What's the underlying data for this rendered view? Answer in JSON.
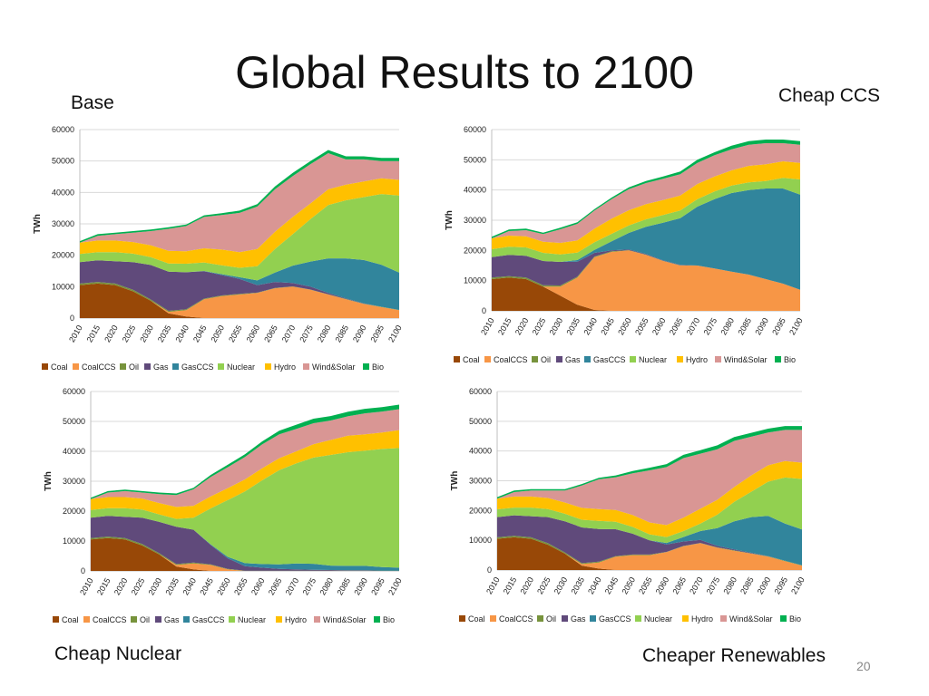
{
  "slide": {
    "title": "Global Results to 2100",
    "labels": {
      "base": "Base",
      "cheap_ccs": "Cheap CCS",
      "cheap_nuclear": "Cheap Nuclear",
      "cheaper_renewables": "Cheaper Renewables"
    },
    "page_number": "20"
  },
  "colors": {
    "Coal": "#984807",
    "CoalCCS": "#F79646",
    "Oil": "#77933C",
    "Gas": "#604A7B",
    "GasCCS": "#31859C",
    "Nuclear": "#92D050",
    "Hydro": "#FFC000",
    "Wind&Solar": "#D99694",
    "Bio": "#00B050"
  },
  "chart_data": [
    {
      "id": "base",
      "type": "area",
      "stacked": true,
      "title": "Base",
      "ylabel": "TWh",
      "ylim": [
        0,
        60000
      ],
      "yticks": [
        0,
        10000,
        20000,
        30000,
        40000,
        50000,
        60000
      ],
      "x": [
        "2010",
        "2015",
        "2020",
        "2025",
        "2030",
        "2035",
        "2040",
        "2045",
        "2050",
        "2055",
        "2060",
        "2065",
        "2070",
        "2075",
        "2080",
        "2085",
        "2090",
        "2095",
        "2100"
      ],
      "legend": [
        "Coal",
        "CoalCCS",
        "Oil",
        "Gas",
        "GasCCS",
        "Nuclear",
        "Hydro",
        "Wind&Solar",
        "Bio"
      ],
      "series": [
        {
          "name": "Coal",
          "values": [
            10500,
            11000,
            10500,
            8500,
            5500,
            1500,
            500,
            0,
            0,
            0,
            0,
            0,
            0,
            0,
            0,
            0,
            0,
            0,
            0
          ]
        },
        {
          "name": "CoalCCS",
          "values": [
            0,
            0,
            0,
            0,
            0,
            500,
            2000,
            6000,
            7000,
            7500,
            8000,
            9500,
            10000,
            9000,
            7500,
            6000,
            4500,
            3500,
            2500
          ]
        },
        {
          "name": "Oil",
          "values": [
            500,
            500,
            500,
            500,
            400,
            300,
            300,
            200,
            200,
            200,
            100,
            100,
            100,
            100,
            100,
            100,
            100,
            100,
            100
          ]
        },
        {
          "name": "Gas",
          "values": [
            6800,
            6900,
            7100,
            8800,
            11000,
            12500,
            11800,
            8700,
            6500,
            4800,
            2400,
            1900,
            1100,
            900,
            400,
            200,
            100,
            0,
            0
          ]
        },
        {
          "name": "GasCCS",
          "values": [
            0,
            0,
            0,
            0,
            0,
            0,
            0,
            100,
            300,
            500,
            1500,
            3000,
            5500,
            8000,
            11000,
            12700,
            13800,
            13400,
            11900
          ]
        },
        {
          "name": "Nuclear",
          "values": [
            2600,
            2600,
            2900,
            2700,
            2500,
            2600,
            2700,
            2700,
            2800,
            3000,
            4500,
            7500,
            10000,
            13500,
            17000,
            18500,
            20000,
            22500,
            24500
          ]
        },
        {
          "name": "Hydro",
          "values": [
            3600,
            3700,
            3700,
            3700,
            3800,
            4000,
            4000,
            4500,
            5000,
            5000,
            5500,
            5500,
            5500,
            5000,
            5000,
            5000,
            5000,
            5000,
            5000
          ]
        },
        {
          "name": "Wind&Solar",
          "values": [
            0,
            1500,
            2000,
            3000,
            4500,
            7000,
            8000,
            10000,
            11000,
            12500,
            13500,
            13500,
            13000,
            12500,
            11500,
            8000,
            7000,
            5500,
            6000
          ]
        },
        {
          "name": "Bio",
          "values": [
            500,
            500,
            500,
            500,
            500,
            500,
            500,
            500,
            600,
            700,
            800,
            900,
            1000,
            1000,
            1000,
            1000,
            1000,
            1000,
            1000
          ]
        }
      ]
    },
    {
      "id": "cheap_ccs",
      "type": "area",
      "stacked": true,
      "title": "Cheap CCS",
      "ylabel": "TWh",
      "ylim": [
        0,
        60000
      ],
      "yticks": [
        0,
        10000,
        20000,
        30000,
        40000,
        50000,
        60000
      ],
      "x": [
        "2010",
        "2015",
        "2020",
        "2025",
        "2030",
        "2035",
        "2040",
        "2045",
        "2050",
        "2055",
        "2060",
        "2065",
        "2070",
        "2075",
        "2080",
        "2085",
        "2090",
        "2095",
        "2100"
      ],
      "legend": [
        "Coal",
        "CoalCCS",
        "Oil",
        "Gas",
        "GasCCS",
        "Nuclear",
        "Hydro",
        "Wind&Solar",
        "Bio"
      ],
      "series": [
        {
          "name": "Coal",
          "values": [
            10500,
            11000,
            10500,
            8000,
            5000,
            2000,
            300,
            0,
            0,
            0,
            0,
            0,
            0,
            0,
            0,
            0,
            0,
            0,
            0
          ]
        },
        {
          "name": "CoalCCS",
          "values": [
            0,
            0,
            0,
            0,
            3000,
            9000,
            17500,
            19500,
            20000,
            18500,
            16500,
            15000,
            15000,
            14000,
            13000,
            12000,
            10500,
            9000,
            7000
          ]
        },
        {
          "name": "Oil",
          "values": [
            500,
            500,
            500,
            500,
            400,
            300,
            200,
            200,
            100,
            100,
            100,
            100,
            0,
            0,
            0,
            0,
            0,
            0,
            0
          ]
        },
        {
          "name": "Gas",
          "values": [
            6800,
            7000,
            7200,
            8000,
            7800,
            5000,
            1200,
            300,
            200,
            200,
            100,
            100,
            0,
            0,
            0,
            0,
            0,
            0,
            0
          ]
        },
        {
          "name": "GasCCS",
          "values": [
            0,
            0,
            0,
            0,
            0,
            500,
            1000,
            3000,
            5500,
            9000,
            12500,
            15500,
            19500,
            23000,
            26000,
            28000,
            30000,
            31500,
            31500
          ]
        },
        {
          "name": "Nuclear",
          "values": [
            2600,
            2700,
            2800,
            2700,
            2500,
            2500,
            2500,
            2500,
            2500,
            2500,
            2500,
            2500,
            2500,
            2500,
            2500,
            2500,
            2500,
            3500,
            5000
          ]
        },
        {
          "name": "Hydro",
          "values": [
            3600,
            3700,
            3700,
            3700,
            3800,
            4000,
            4500,
            5000,
            5000,
            5000,
            5000,
            5000,
            5000,
            5000,
            5000,
            5500,
            5500,
            5500,
            5500
          ]
        },
        {
          "name": "Wind&Solar",
          "values": [
            0,
            1500,
            2000,
            2500,
            4500,
            5500,
            6000,
            6500,
            7000,
            7000,
            7000,
            7000,
            7000,
            7000,
            7000,
            7000,
            7000,
            6000,
            6000
          ]
        },
        {
          "name": "Bio",
          "values": [
            500,
            500,
            500,
            500,
            500,
            500,
            500,
            500,
            600,
            700,
            800,
            900,
            1000,
            1000,
            1200,
            1200,
            1200,
            1200,
            1200
          ]
        }
      ]
    },
    {
      "id": "cheap_nuclear",
      "type": "area",
      "stacked": true,
      "title": "Cheap Nuclear",
      "ylabel": "TWh",
      "ylim": [
        0,
        60000
      ],
      "yticks": [
        0,
        10000,
        20000,
        30000,
        40000,
        50000,
        60000
      ],
      "x": [
        "2010",
        "2015",
        "2020",
        "2025",
        "2030",
        "2035",
        "2040",
        "2045",
        "2050",
        "2055",
        "2060",
        "2065",
        "2070",
        "2075",
        "2080",
        "2085",
        "2090",
        "2095",
        "2100"
      ],
      "legend": [
        "Coal",
        "CoalCCS",
        "Oil",
        "Gas",
        "GasCCS",
        "Nuclear",
        "Hydro",
        "Wind&Solar",
        "Bio"
      ],
      "series": [
        {
          "name": "Coal",
          "values": [
            10500,
            11000,
            10500,
            8500,
            5500,
            1500,
            500,
            0,
            0,
            0,
            0,
            0,
            0,
            0,
            0,
            0,
            0,
            0,
            0
          ]
        },
        {
          "name": "CoalCCS",
          "values": [
            0,
            0,
            0,
            0,
            0,
            500,
            2000,
            2000,
            500,
            0,
            0,
            0,
            0,
            0,
            0,
            0,
            0,
            0,
            0
          ]
        },
        {
          "name": "Oil",
          "values": [
            500,
            500,
            500,
            500,
            400,
            300,
            300,
            200,
            200,
            100,
            100,
            100,
            100,
            100,
            100,
            100,
            100,
            100,
            100
          ]
        },
        {
          "name": "Gas",
          "values": [
            6800,
            6900,
            7100,
            8800,
            10500,
            12500,
            11000,
            6500,
            3500,
            1500,
            1000,
            600,
            400,
            300,
            200,
            100,
            100,
            0,
            0
          ]
        },
        {
          "name": "GasCCS",
          "values": [
            0,
            0,
            0,
            0,
            0,
            0,
            0,
            200,
            500,
            1000,
            1200,
            1500,
            2000,
            2000,
            1500,
            1500,
            1500,
            1200,
            1000
          ]
        },
        {
          "name": "Nuclear",
          "values": [
            2600,
            2600,
            2900,
            2700,
            2500,
            2600,
            4000,
            12000,
            19000,
            24000,
            28000,
            31500,
            33500,
            35500,
            37000,
            38000,
            38500,
            39500,
            40000
          ]
        },
        {
          "name": "Hydro",
          "values": [
            3600,
            3700,
            3700,
            3700,
            3800,
            4000,
            4000,
            4000,
            4000,
            4000,
            4000,
            4000,
            4000,
            4500,
            5000,
            5500,
            5500,
            5500,
            6000
          ]
        },
        {
          "name": "Wind&Solar",
          "values": [
            0,
            1500,
            2000,
            2000,
            3000,
            4000,
            5500,
            6500,
            7000,
            7500,
            8000,
            8000,
            7500,
            7000,
            6500,
            6500,
            7000,
            7000,
            7000
          ]
        },
        {
          "name": "Bio",
          "values": [
            500,
            500,
            500,
            500,
            500,
            500,
            500,
            700,
            800,
            900,
            1000,
            1200,
            1400,
            1500,
            1500,
            1500,
            1500,
            1500,
            1500
          ]
        }
      ]
    },
    {
      "id": "cheaper_renewables",
      "type": "area",
      "stacked": true,
      "title": "Cheaper Renewables",
      "ylabel": "TWh",
      "ylim": [
        0,
        60000
      ],
      "yticks": [
        0,
        10000,
        20000,
        30000,
        40000,
        50000,
        60000
      ],
      "x": [
        "2010",
        "2015",
        "2020",
        "2025",
        "2030",
        "2035",
        "2040",
        "2045",
        "2050",
        "2055",
        "2060",
        "2065",
        "2070",
        "2075",
        "2080",
        "2085",
        "2090",
        "2095",
        "2100"
      ],
      "legend": [
        "Coal",
        "CoalCCS",
        "Oil",
        "Gas",
        "GasCCS",
        "Nuclear",
        "Hydro",
        "Wind&Solar",
        "Bio"
      ],
      "series": [
        {
          "name": "Coal",
          "values": [
            10500,
            11000,
            10500,
            8500,
            5500,
            1500,
            500,
            0,
            0,
            0,
            0,
            0,
            0,
            0,
            0,
            0,
            0,
            0,
            0
          ]
        },
        {
          "name": "CoalCCS",
          "values": [
            0,
            0,
            0,
            0,
            0,
            500,
            2000,
            4500,
            5000,
            5000,
            6000,
            8000,
            9000,
            7500,
            6500,
            5500,
            4500,
            3000,
            1500
          ]
        },
        {
          "name": "Oil",
          "values": [
            500,
            500,
            500,
            500,
            400,
            300,
            300,
            200,
            200,
            200,
            100,
            100,
            100,
            100,
            100,
            100,
            100,
            100,
            100
          ]
        },
        {
          "name": "Gas",
          "values": [
            6800,
            6900,
            7100,
            8800,
            10500,
            12000,
            11000,
            9000,
            7000,
            4800,
            2500,
            1500,
            1000,
            500,
            300,
            200,
            100,
            0,
            0
          ]
        },
        {
          "name": "GasCCS",
          "values": [
            0,
            0,
            0,
            0,
            0,
            0,
            0,
            0,
            0,
            0,
            500,
            1500,
            3000,
            6000,
            9500,
            12000,
            13500,
            12500,
            12000
          ]
        },
        {
          "name": "Nuclear",
          "values": [
            2600,
            2600,
            2900,
            2700,
            2500,
            2600,
            2700,
            2500,
            2300,
            2000,
            2000,
            2000,
            2500,
            4500,
            6500,
            8500,
            11500,
            15500,
            17000
          ]
        },
        {
          "name": "Hydro",
          "values": [
            3600,
            3700,
            3700,
            3700,
            3800,
            4000,
            4000,
            4000,
            4000,
            4000,
            4000,
            4500,
            5000,
            5000,
            5000,
            5500,
            5500,
            5500,
            5500
          ]
        },
        {
          "name": "Wind&Solar",
          "values": [
            0,
            1500,
            2000,
            2500,
            4000,
            7500,
            10000,
            11000,
            14000,
            17500,
            19500,
            20000,
            18500,
            17000,
            15500,
            13000,
            11000,
            10500,
            11000
          ]
        },
        {
          "name": "Bio",
          "values": [
            500,
            500,
            500,
            500,
            500,
            500,
            500,
            600,
            800,
            900,
            1000,
            1100,
            1200,
            1300,
            1300,
            1300,
            1300,
            1300,
            1300
          ]
        }
      ]
    }
  ]
}
